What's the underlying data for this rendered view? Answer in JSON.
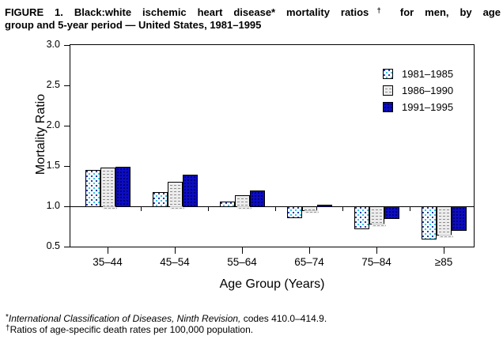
{
  "title": {
    "full": "FIGURE 1. Black:white ischemic heart disease* mortality ratios† for men, by age group and 5-year period — United States, 1981–1995",
    "line1_a": "FIGURE 1. Black:white ischemic heart disease* mortality ratios",
    "dagger": "†",
    "line1_b": " for men, by age",
    "line2": "group and 5-year period — United States, 1981–1995"
  },
  "chart_data": {
    "type": "bar",
    "title": "FIGURE 1. Black:white ischemic heart disease* mortality ratios† for men, by age group and 5-year period — United States, 1981–1995",
    "categories": [
      "35–44",
      "45–54",
      "55–64",
      "65–74",
      "75–84",
      "≥85"
    ],
    "series": [
      {
        "name": "1981–1985",
        "style": "dotted",
        "values": [
          1.45,
          1.18,
          1.06,
          0.86,
          0.73,
          0.6
        ]
      },
      {
        "name": "1986–1990",
        "style": "hlines",
        "values": [
          1.48,
          1.3,
          1.14,
          0.95,
          0.78,
          0.65
        ]
      },
      {
        "name": "1991–1995",
        "style": "solid",
        "values": [
          1.49,
          1.39,
          1.2,
          1.02,
          0.85,
          0.71
        ]
      }
    ],
    "xlabel": "Age Group (Years)",
    "ylabel": "Mortality Ratio",
    "ylim": [
      0.5,
      3.0
    ],
    "baseline": 1.0,
    "ytick_labels": [
      "3.0",
      "2.5",
      "2.0",
      "1.5",
      "1.0",
      "0.5"
    ],
    "grid": false,
    "legend_position": "top-right-inside"
  },
  "footnotes": {
    "fn1_marker": "*",
    "fn1_italic": "International Classification of Diseases, Ninth Revision,",
    "fn1_rest": " codes 410.0–414.9.",
    "fn2_marker": "†",
    "fn2_text": "Ratios of age-specific death rates per 100,000 population."
  },
  "colors": {
    "navy": "#0d0dc1",
    "navy_dot": "#00006a",
    "dot_cyan": "#2fc9e8",
    "dot_blue": "#2a3cb0",
    "hline_bg": "#ececec",
    "line_gray": "#8c8c8c"
  }
}
